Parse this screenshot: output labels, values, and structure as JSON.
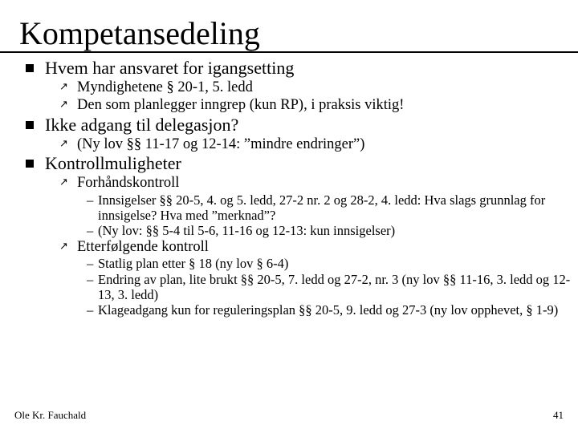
{
  "title": "Kompetansedeling",
  "bullets": {
    "b1": "Hvem har ansvaret for igangsetting",
    "b1_1": "Myndighetene § 20-1, 5. ledd",
    "b1_2": "Den som planlegger inngrep (kun RP), i praksis viktig!",
    "b2": "Ikke adgang til delegasjon?",
    "b2_1": "(Ny lov §§ 11-17 og 12-14: ”mindre endringer”)",
    "b3": "Kontrollmuligheter",
    "b3_1": "Forhåndskontroll",
    "b3_1_1": "Innsigelser §§ 20-5, 4. og 5. ledd, 27-2 nr. 2 og 28-2, 4. ledd: Hva slags grunnlag for innsigelse? Hva med ”merknad”?",
    "b3_1_2": "(Ny lov: §§ 5-4 til 5-6, 11-16 og 12-13: kun innsigelser)",
    "b3_2": "Etterfølgende kontroll",
    "b3_2_1": "Statlig plan etter § 18 (ny lov § 6-4)",
    "b3_2_2": "Endring av plan, lite brukt §§ 20-5, 7. ledd og 27-2, nr. 3 (ny lov §§ 11-16, 3. ledd og 12-13, 3. ledd)",
    "b3_2_3": "Klageadgang kun for reguleringsplan §§ 20-5, 9. ledd og 27-3 (ny lov opphevet, § 1-9)"
  },
  "footer": {
    "author": "Ole Kr. Fauchald",
    "page": "41"
  },
  "colors": {
    "bg": "#ffffff",
    "text": "#000000",
    "rule": "#000000"
  }
}
